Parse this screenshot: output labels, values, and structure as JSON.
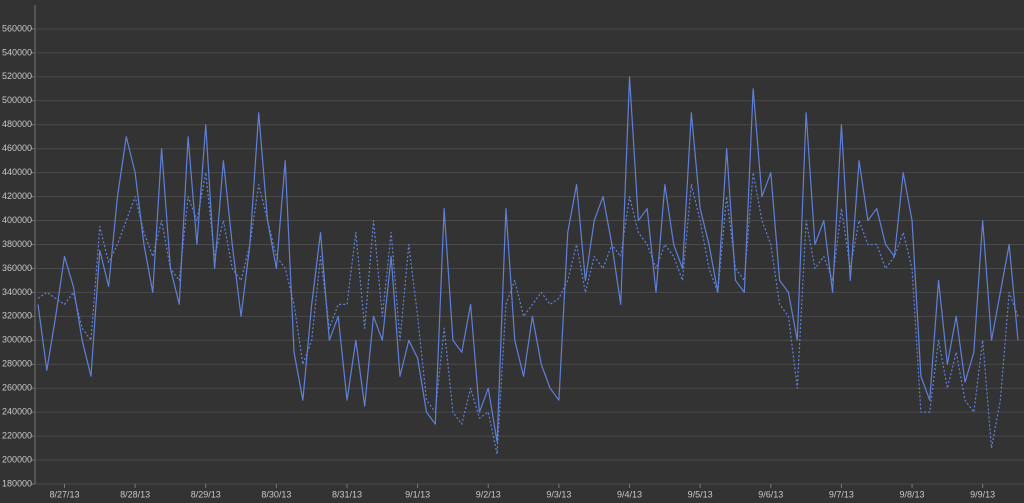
{
  "chart_data": {
    "type": "line",
    "x": [
      null,
      null,
      null,
      "8/27/13",
      null,
      null,
      null,
      null,
      null,
      null,
      null,
      "8/28/13",
      null,
      null,
      null,
      null,
      null,
      null,
      null,
      "8/29/13",
      null,
      null,
      null,
      null,
      null,
      null,
      null,
      "8/30/13",
      null,
      null,
      null,
      null,
      null,
      null,
      null,
      "8/31/13",
      null,
      null,
      null,
      null,
      null,
      null,
      null,
      "9/1/13",
      null,
      null,
      null,
      null,
      null,
      null,
      null,
      "9/2/13",
      null,
      null,
      null,
      null,
      null,
      null,
      null,
      "9/3/13",
      null,
      null,
      null,
      null,
      null,
      null,
      null,
      "9/4/13",
      null,
      null,
      null,
      null,
      null,
      null,
      null,
      "9/5/13",
      null,
      null,
      null,
      null,
      null,
      null,
      null,
      "9/6/13",
      null,
      null,
      null,
      null,
      null,
      null,
      null,
      "9/7/13",
      null,
      null,
      null,
      null,
      null,
      null,
      null,
      "9/8/13",
      null,
      null,
      null,
      null,
      null,
      null,
      null,
      "9/9/13",
      null,
      null,
      null,
      null
    ],
    "series": [
      {
        "color": "#5f80d8",
        "dashed": false,
        "values": [
          330000,
          275000,
          320000,
          370000,
          345000,
          300000,
          270000,
          375000,
          345000,
          420000,
          470000,
          440000,
          380000,
          340000,
          460000,
          360000,
          330000,
          470000,
          380000,
          480000,
          360000,
          450000,
          380000,
          320000,
          380000,
          490000,
          400000,
          360000,
          450000,
          290000,
          250000,
          330000,
          390000,
          300000,
          320000,
          250000,
          300000,
          245000,
          320000,
          300000,
          370000,
          270000,
          300000,
          285000,
          240000,
          230000,
          410000,
          300000,
          290000,
          330000,
          240000,
          260000,
          215000,
          410000,
          300000,
          270000,
          320000,
          280000,
          260000,
          250000,
          390000,
          430000,
          350000,
          400000,
          420000,
          380000,
          330000,
          520000,
          400000,
          410000,
          340000,
          430000,
          380000,
          360000,
          490000,
          410000,
          380000,
          340000,
          460000,
          350000,
          340000,
          510000,
          420000,
          440000,
          350000,
          340000,
          300000,
          490000,
          380000,
          400000,
          340000,
          480000,
          350000,
          450000,
          400000,
          410000,
          380000,
          370000,
          440000,
          400000,
          270000,
          250000,
          350000,
          280000,
          320000,
          265000,
          290000,
          400000,
          300000,
          340000,
          380000,
          300000
        ]
      },
      {
        "color": "#5f80d8",
        "dashed": true,
        "values": [
          335000,
          340000,
          335000,
          330000,
          340000,
          310000,
          300000,
          395000,
          365000,
          380000,
          400000,
          420000,
          390000,
          370000,
          400000,
          360000,
          350000,
          420000,
          400000,
          440000,
          370000,
          400000,
          360000,
          350000,
          380000,
          430000,
          400000,
          370000,
          360000,
          330000,
          280000,
          300000,
          370000,
          310000,
          330000,
          330000,
          390000,
          310000,
          400000,
          320000,
          390000,
          300000,
          380000,
          320000,
          250000,
          240000,
          310000,
          240000,
          230000,
          260000,
          235000,
          240000,
          205000,
          330000,
          350000,
          320000,
          330000,
          340000,
          330000,
          335000,
          350000,
          380000,
          340000,
          370000,
          360000,
          380000,
          370000,
          420000,
          390000,
          380000,
          360000,
          380000,
          370000,
          350000,
          430000,
          400000,
          360000,
          340000,
          420000,
          360000,
          350000,
          440000,
          400000,
          380000,
          330000,
          320000,
          260000,
          400000,
          360000,
          370000,
          350000,
          410000,
          360000,
          400000,
          380000,
          380000,
          360000,
          370000,
          390000,
          360000,
          240000,
          240000,
          300000,
          260000,
          290000,
          250000,
          240000,
          300000,
          210000,
          250000,
          340000,
          320000
        ]
      }
    ],
    "ylim": [
      180000,
      580000
    ],
    "yticks": [
      180000,
      200000,
      220000,
      240000,
      260000,
      280000,
      300000,
      320000,
      340000,
      360000,
      380000,
      400000,
      420000,
      440000,
      460000,
      480000,
      500000,
      520000,
      540000,
      560000
    ],
    "grid": true
  }
}
